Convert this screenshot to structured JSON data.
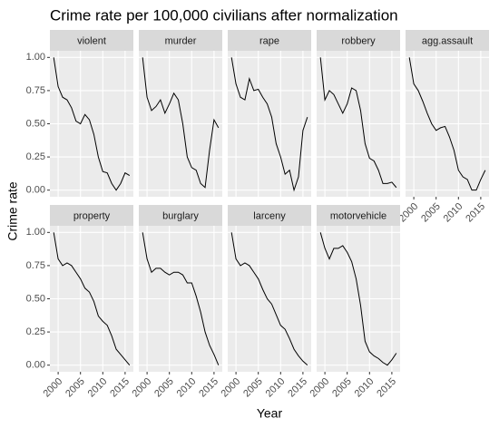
{
  "chart_data": {
    "type": "line",
    "title": "Crime rate per 100,000 civilians after normalization",
    "xlabel": "Year",
    "ylabel": "Crime rate",
    "x": [
      1999,
      2000,
      2001,
      2002,
      2003,
      2004,
      2005,
      2006,
      2007,
      2008,
      2009,
      2010,
      2011,
      2012,
      2013,
      2014,
      2015,
      2016
    ],
    "xlim": [
      1998.15,
      2016.85
    ],
    "xticks": [
      2000,
      2005,
      2010,
      2015
    ],
    "ylim": [
      -0.05,
      1.05
    ],
    "yticks": [
      {
        "value": 0,
        "label": "0.00"
      },
      {
        "value": 0.25,
        "label": "0.25"
      },
      {
        "value": 0.5,
        "label": "0.50"
      },
      {
        "value": 0.75,
        "label": "0.75"
      },
      {
        "value": 1,
        "label": "1.00"
      }
    ],
    "grid": true,
    "columns": 5,
    "series": [
      {
        "name": "violent",
        "color": "#000000",
        "values": [
          1,
          0.78,
          0.7,
          0.68,
          0.62,
          0.52,
          0.5,
          0.57,
          0.53,
          0.42,
          0.25,
          0.14,
          0.13,
          0.05,
          0,
          0.05,
          0.13,
          0.11
        ]
      },
      {
        "name": "murder",
        "color": "#000000",
        "values": [
          1,
          0.7,
          0.6,
          0.63,
          0.68,
          0.58,
          0.65,
          0.73,
          0.68,
          0.5,
          0.25,
          0.17,
          0.15,
          0.05,
          0.02,
          0.3,
          0.53,
          0.47
        ]
      },
      {
        "name": "rape",
        "color": "#000000",
        "values": [
          1,
          0.8,
          0.7,
          0.68,
          0.84,
          0.75,
          0.76,
          0.7,
          0.65,
          0.55,
          0.35,
          0.25,
          0.12,
          0.15,
          0,
          0.1,
          0.45,
          0.55
        ]
      },
      {
        "name": "robbery",
        "color": "#000000",
        "values": [
          1,
          0.68,
          0.75,
          0.72,
          0.65,
          0.58,
          0.65,
          0.77,
          0.75,
          0.6,
          0.35,
          0.24,
          0.22,
          0.15,
          0.05,
          0.05,
          0.06,
          0.02
        ]
      },
      {
        "name": "agg.assault",
        "color": "#000000",
        "values": [
          1,
          0.8,
          0.75,
          0.67,
          0.58,
          0.5,
          0.45,
          0.47,
          0.48,
          0.4,
          0.3,
          0.15,
          0.1,
          0.08,
          0,
          0,
          0.08,
          0.15
        ]
      },
      {
        "name": "property",
        "color": "#000000",
        "values": [
          1,
          0.8,
          0.75,
          0.77,
          0.75,
          0.7,
          0.65,
          0.58,
          0.55,
          0.48,
          0.37,
          0.33,
          0.3,
          0.22,
          0.12,
          0.08,
          0.04,
          0
        ]
      },
      {
        "name": "burglary",
        "color": "#000000",
        "values": [
          1,
          0.8,
          0.7,
          0.73,
          0.73,
          0.7,
          0.68,
          0.7,
          0.7,
          0.68,
          0.62,
          0.62,
          0.52,
          0.4,
          0.25,
          0.15,
          0.08,
          0
        ]
      },
      {
        "name": "larceny",
        "color": "#000000",
        "values": [
          1,
          0.8,
          0.75,
          0.77,
          0.75,
          0.7,
          0.65,
          0.57,
          0.5,
          0.46,
          0.38,
          0.3,
          0.27,
          0.2,
          0.12,
          0.07,
          0.03,
          0
        ]
      },
      {
        "name": "motorvehicle",
        "color": "#000000",
        "values": [
          1,
          0.88,
          0.8,
          0.88,
          0.88,
          0.9,
          0.85,
          0.78,
          0.65,
          0.45,
          0.18,
          0.1,
          0.07,
          0.05,
          0.02,
          0,
          0.04,
          0.09
        ]
      }
    ]
  }
}
